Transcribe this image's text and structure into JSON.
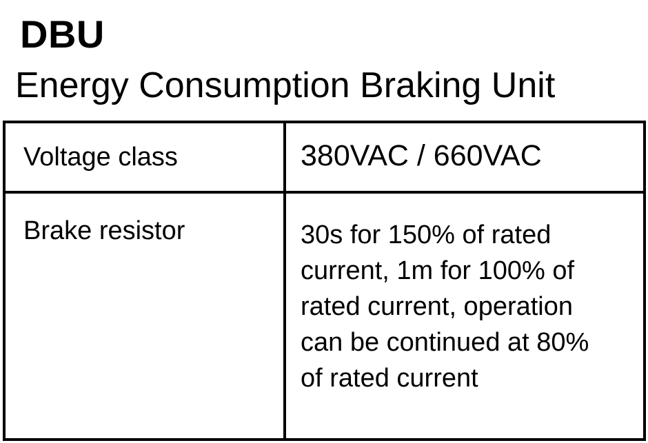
{
  "heading": {
    "title": "DBU",
    "subtitle": "Energy Consumption Braking Unit"
  },
  "spec_table": {
    "rows": [
      {
        "label": "Voltage class",
        "value": "380VAC / 660VAC"
      },
      {
        "label": "Brake resistor",
        "value": "30s for 150% of rated current, 1m for 100% of rated current, operation can be continued at 80% of rated current"
      }
    ]
  }
}
